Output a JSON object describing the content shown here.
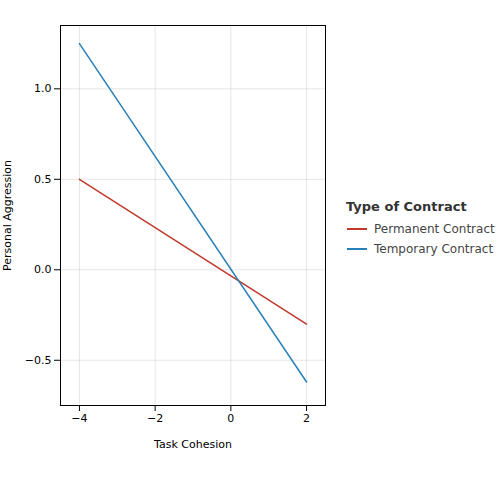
{
  "chart_data": {
    "type": "line",
    "series": [
      {
        "name": "Permanent Contract",
        "color": "#c0392b",
        "x": [
          -4,
          2
        ],
        "values": [
          0.5,
          -0.3
        ]
      },
      {
        "name": "Temporary Contract",
        "color": "#2980b9",
        "x": [
          -4,
          2
        ],
        "values": [
          1.25,
          -0.62
        ]
      }
    ],
    "x_label": "Task Cohesion",
    "y_label": "Personal Aggression",
    "legend_title": "Type of Contract",
    "legend": "right",
    "grid": true,
    "xlim": [
      -4.5,
      2.5
    ],
    "ylim": [
      -0.75,
      1.35
    ],
    "xticks": [
      {
        "value": -4,
        "label": "−4"
      },
      {
        "value": -2,
        "label": "−2"
      },
      0,
      2
    ],
    "yticks": [
      {
        "value": -0.5,
        "label": "−0.5"
      },
      {
        "value": 0.0,
        "label": "0.0"
      },
      0.5,
      {
        "value": 1.0,
        "label": "1.0"
      }
    ]
  }
}
